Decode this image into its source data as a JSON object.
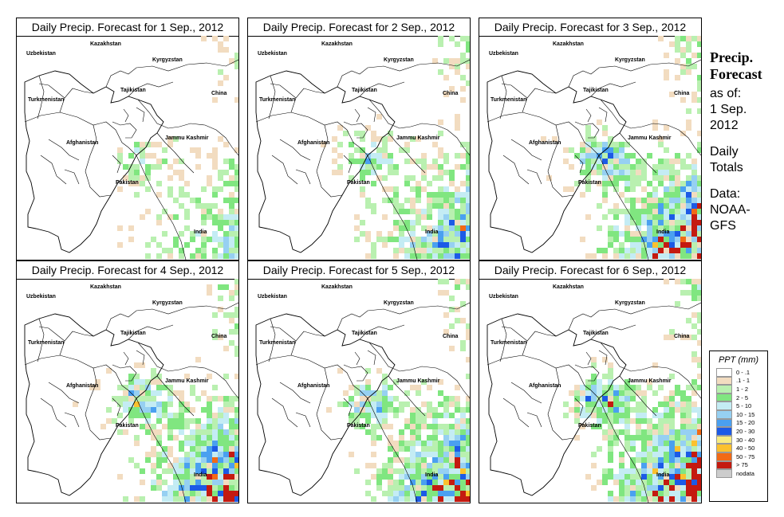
{
  "panels": [
    {
      "title": "Daily Precip. Forecast for  1 Sep., 2012",
      "seed": 11,
      "wet": 0.6
    },
    {
      "title": "Daily Precip. Forecast for  2 Sep., 2012",
      "seed": 23,
      "wet": 0.9
    },
    {
      "title": "Daily Precip. Forecast for  3 Sep., 2012",
      "seed": 37,
      "wet": 1.25
    },
    {
      "title": "Daily Precip. Forecast for  4 Sep., 2012",
      "seed": 41,
      "wet": 1.15
    },
    {
      "title": "Daily Precip. Forecast for  5 Sep., 2012",
      "seed": 53,
      "wet": 1.1
    },
    {
      "title": "Daily Precip. Forecast for  6 Sep., 2012",
      "seed": 67,
      "wet": 1.35
    }
  ],
  "countries": [
    "Kazakhstan",
    "Uzbekistan",
    "Kyrgyzstan",
    "Tajikistan",
    "Turkmenistan",
    "China",
    "Afghanistan",
    "Jammu Kashmir",
    "Pakistan",
    "India"
  ],
  "side": {
    "title_line1": "Precip.",
    "title_line2": "Forecast",
    "asof_line1": "as of:",
    "asof_line2": "1 Sep.",
    "asof_line3": "2012",
    "daily_line1": "Daily",
    "daily_line2": "Totals",
    "data_line1": "Data:",
    "data_line2": "NOAA-",
    "data_line3": "GFS"
  },
  "legend": {
    "title": "PPT (mm)",
    "items": [
      {
        "label": "0 - .1",
        "color": "#ffffff"
      },
      {
        "label": ".1 - 1",
        "color": "#f2dcc0"
      },
      {
        "label": "1 - 2",
        "color": "#b9f0b0"
      },
      {
        "label": "2 - 5",
        "color": "#80e680"
      },
      {
        "label": "5 - 10",
        "color": "#c4ecf4"
      },
      {
        "label": "10 - 15",
        "color": "#96d0f2"
      },
      {
        "label": "15 - 20",
        "color": "#4aa0f0"
      },
      {
        "label": "20 - 30",
        "color": "#1c5ae6"
      },
      {
        "label": "30 - 40",
        "color": "#f8ec80"
      },
      {
        "label": "40 - 50",
        "color": "#fbc12e"
      },
      {
        "label": "50 - 75",
        "color": "#f26a16"
      },
      {
        "label": "> 75",
        "color": "#c41a10"
      },
      {
        "label": "nodata",
        "color": "#cccccc"
      }
    ]
  }
}
